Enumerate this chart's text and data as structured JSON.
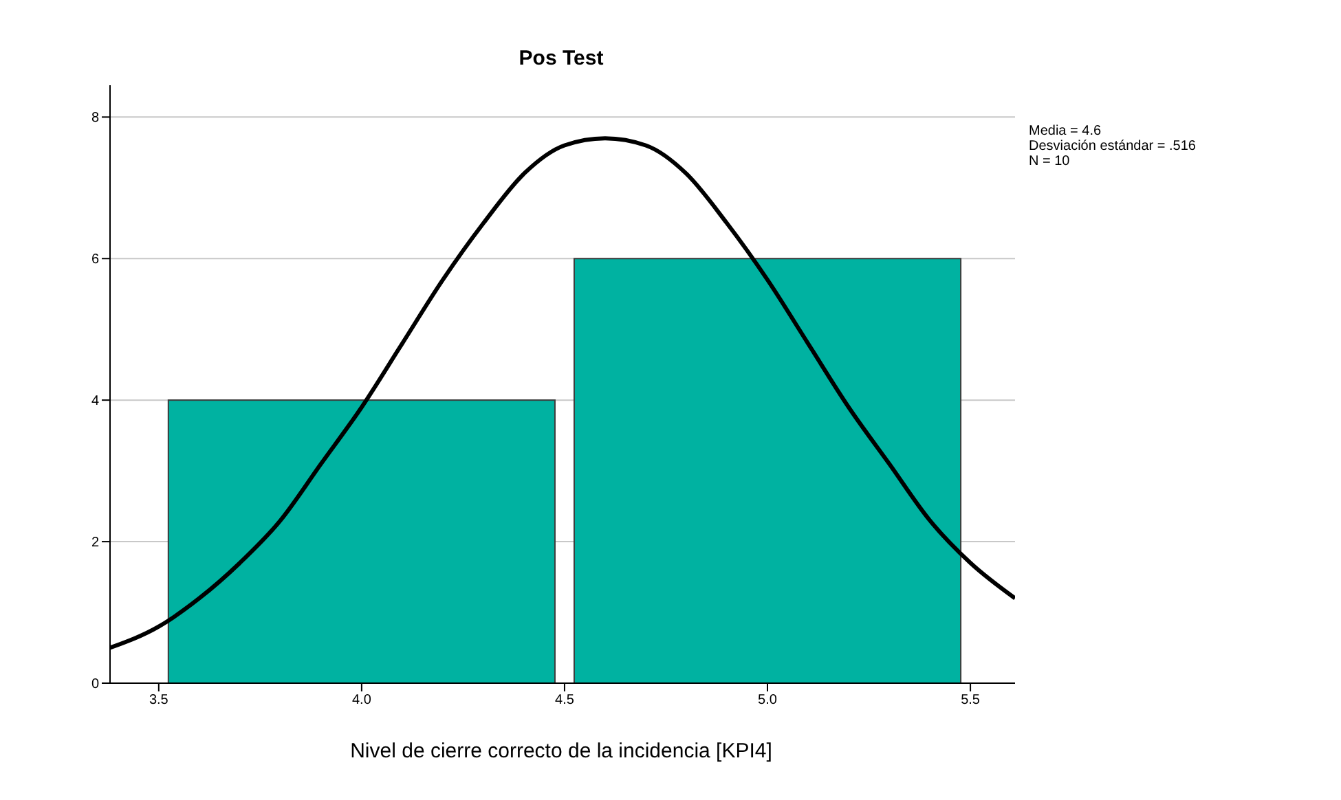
{
  "chart_data": {
    "type": "histogram",
    "title": "Pos Test",
    "xlabel": "Nivel de cierre correcto de la incidencia [KPI4]",
    "bins": [
      3.5,
      4.5,
      5.5
    ],
    "values": [
      4,
      6
    ],
    "color": "#00b2a1",
    "series": [
      {
        "type": "line",
        "color": "#000000",
        "x": [
          3.38,
          3.5,
          3.6,
          3.7,
          3.8,
          3.9,
          4.0,
          4.1,
          4.2,
          4.3,
          4.4,
          4.5,
          4.6,
          4.7,
          4.8,
          4.9,
          5.0,
          5.1,
          5.2,
          5.3,
          5.4,
          5.5,
          5.61
        ],
        "values": [
          0.5,
          0.8,
          1.2,
          1.7,
          2.3,
          3.1,
          3.9,
          4.8,
          5.7,
          6.5,
          7.2,
          7.6,
          7.7,
          7.6,
          7.2,
          6.5,
          5.7,
          4.8,
          3.9,
          3.1,
          2.3,
          1.7,
          1.2
        ]
      }
    ],
    "marker": "none",
    "line_style": "solid",
    "xlim": [
      3.38,
      5.61
    ],
    "xticks": [
      {
        "value": 3.5,
        "label": "3.5"
      },
      {
        "value": 4,
        "label": "4.0"
      },
      {
        "value": 4.5,
        "label": "4.5"
      },
      {
        "value": 5,
        "label": "5.0"
      },
      {
        "value": 5.5,
        "label": "5.5"
      }
    ],
    "ylim": [
      0,
      8.45
    ],
    "yticks": [
      0,
      2,
      4,
      6,
      8
    ],
    "grid": "y",
    "annotations": [
      "Media = 4.6",
      "Desviación estándar = .516",
      "N = 10"
    ]
  }
}
